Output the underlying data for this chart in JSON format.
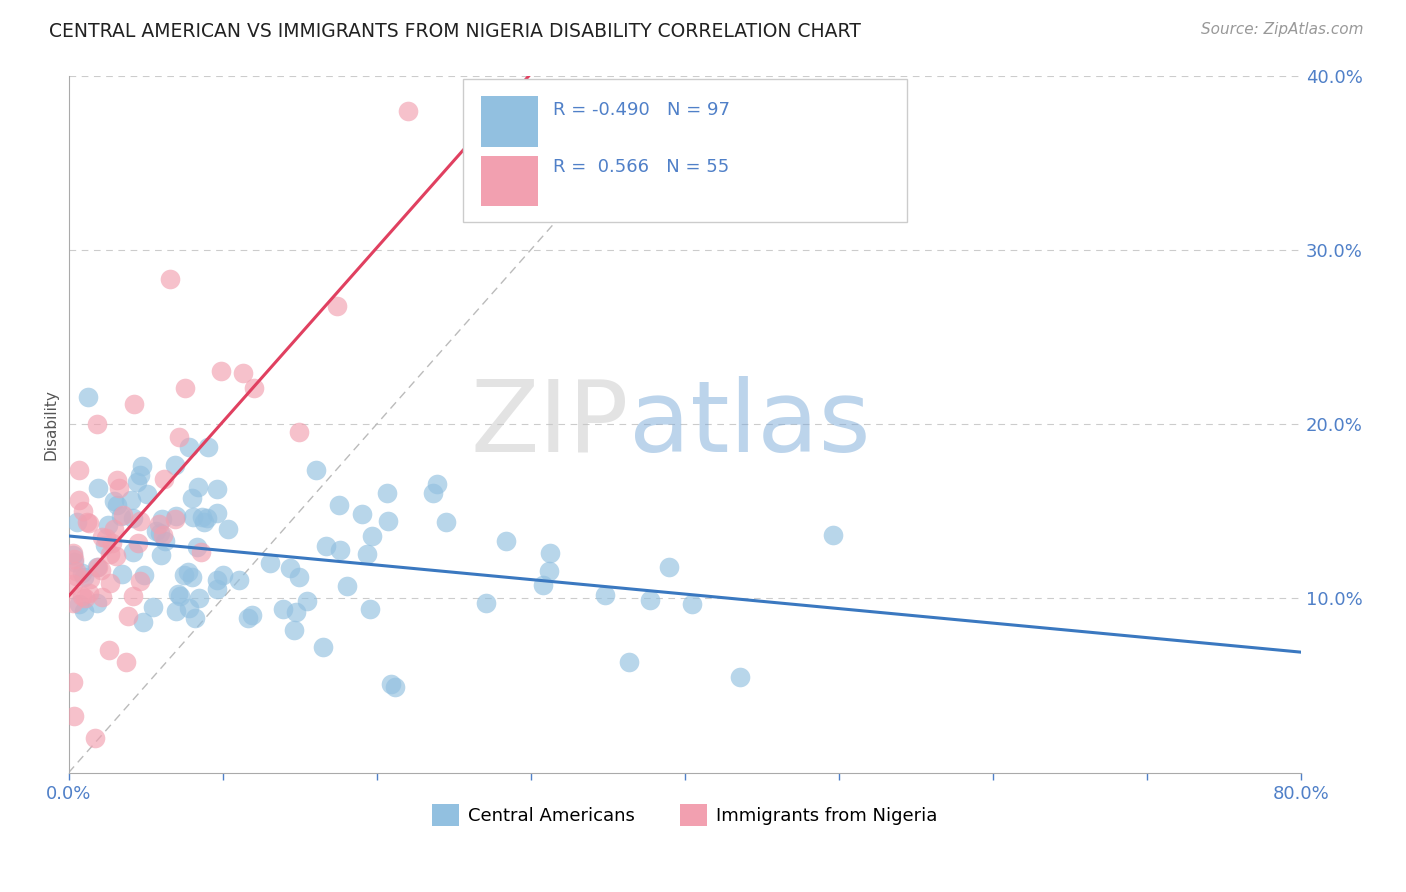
{
  "title": "CENTRAL AMERICAN VS IMMIGRANTS FROM NIGERIA DISABILITY CORRELATION CHART",
  "source_text": "Source: ZipAtlas.com",
  "ylabel": "Disability",
  "xlim": [
    0.0,
    0.8
  ],
  "ylim": [
    0.0,
    0.4
  ],
  "r_blue": -0.49,
  "n_blue": 97,
  "r_pink": 0.566,
  "n_pink": 55,
  "blue_color": "#92C0E0",
  "pink_color": "#F2A0B0",
  "blue_line_color": "#3A78C0",
  "pink_line_color": "#E04060",
  "ref_line_color": "#BBBBBB",
  "grid_color": "#CCCCCC",
  "title_color": "#222222",
  "axis_label_color": "#5080C8",
  "legend_r_color": "#E04060",
  "legend_n_color": "#3060A0",
  "figsize": [
    14.06,
    8.92
  ],
  "dpi": 100
}
